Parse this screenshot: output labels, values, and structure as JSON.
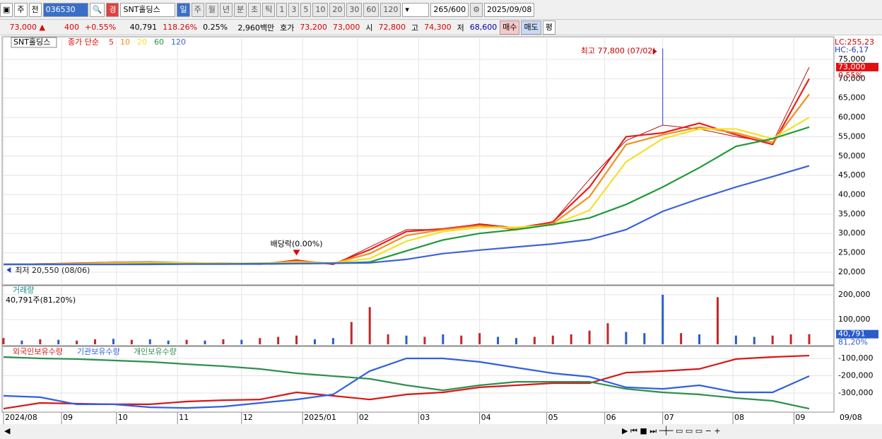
{
  "toolbar": {
    "period": "주",
    "prev": "전",
    "code": "036530",
    "name": "SNT홀딩스",
    "flag": "경",
    "units": [
      "일",
      "주",
      "월",
      "년",
      "분",
      "초",
      "틱"
    ],
    "minutes": [
      "1",
      "3",
      "5",
      "10",
      "20",
      "30",
      "60",
      "120"
    ],
    "count": "265",
    "count_max": "/600",
    "date": "2025/09/08"
  },
  "info": {
    "price": "73,000 ▲",
    "change": "400",
    "change_pct": "+0.55%",
    "volume": "40,791",
    "volume_ratio": "118.26%",
    "turnover": "0.25%",
    "amount": "2,960백만",
    "quote_label": "호가",
    "ask": "73,200",
    "bid": "73,000",
    "open_label": "시",
    "open": "72,800",
    "high_label": "고",
    "high": "74,300",
    "low_label": "저",
    "low": "68,600",
    "buy": "매수",
    "sell": "매도",
    "avg": "평"
  },
  "x_axis": {
    "xlim": [
      0,
      264
    ],
    "xticks": [
      {
        "value": 0,
        "label": "2024/08"
      },
      {
        "value": 19,
        "label": "09"
      },
      {
        "value": 37,
        "label": "10"
      },
      {
        "value": 57,
        "label": "11"
      },
      {
        "value": 78,
        "label": "12"
      },
      {
        "value": 98,
        "label": "2025/01"
      },
      {
        "value": 116,
        "label": "02"
      },
      {
        "value": 136,
        "label": "03"
      },
      {
        "value": 156,
        "label": "04"
      },
      {
        "value": 178,
        "label": "05"
      },
      {
        "value": 197,
        "label": "06"
      },
      {
        "value": 216,
        "label": "07"
      },
      {
        "value": 239,
        "label": "08"
      },
      {
        "value": 259,
        "label": "09"
      }
    ],
    "end_label": "09/08",
    "grid": true
  },
  "price_panel": {
    "stock_label": "SNT홀딩스",
    "legend_prefix": "종가 단순",
    "x": [
      0,
      12,
      24,
      36,
      48,
      60,
      72,
      84,
      96,
      108,
      120,
      132,
      144,
      156,
      168,
      180,
      192,
      204,
      216,
      228,
      240,
      252,
      264
    ],
    "close": {
      "color": "#b01818",
      "values": [
        22000,
        22200,
        22300,
        22600,
        22600,
        22400,
        22400,
        22000,
        23200,
        21900,
        26500,
        31000,
        31000,
        32500,
        31500,
        33000,
        44000,
        54000,
        58000,
        57000,
        55000,
        53500,
        73000
      ]
    },
    "series": [
      {
        "name": "5",
        "color": "#e8201c",
        "values": [
          22000,
          22100,
          22300,
          22500,
          22600,
          22400,
          22300,
          22100,
          23000,
          22100,
          25800,
          30500,
          31200,
          32300,
          31000,
          33000,
          42000,
          55000,
          56000,
          58500,
          55500,
          53000,
          70000
        ]
      },
      {
        "name": "10",
        "color": "#f0901e",
        "values": [
          22000,
          22100,
          22200,
          22400,
          22500,
          22400,
          22300,
          22200,
          22800,
          22300,
          24800,
          29500,
          31000,
          32000,
          31200,
          32500,
          39500,
          53000,
          55500,
          57500,
          56000,
          53500,
          66000
        ]
      },
      {
        "name": "20",
        "color": "#f2e22a",
        "values": [
          22000,
          22000,
          22100,
          22300,
          22400,
          22400,
          22300,
          22300,
          22500,
          22400,
          23500,
          28000,
          30500,
          31500,
          31600,
          32200,
          36000,
          48500,
          54500,
          57000,
          57000,
          54500,
          60000
        ]
      },
      {
        "name": "60",
        "color": "#1e9a38",
        "values": [
          22000,
          22000,
          22000,
          22000,
          22100,
          22100,
          22100,
          22200,
          22200,
          22300,
          22600,
          25500,
          28300,
          30000,
          31000,
          32300,
          34000,
          37500,
          42000,
          47000,
          52500,
          54500,
          57500
        ]
      },
      {
        "name": "120",
        "color": "#3c64d8",
        "values": [
          22000,
          22000,
          22000,
          22000,
          22000,
          22100,
          22100,
          22100,
          22200,
          22300,
          22400,
          23300,
          24800,
          25700,
          26500,
          27300,
          28400,
          31000,
          35700,
          39000,
          42000,
          44700,
          47500
        ]
      }
    ],
    "ylim": [
      16700,
      80850
    ],
    "yticks": [
      {
        "value": 20000,
        "label": "20,000"
      },
      {
        "value": 25000,
        "label": "25,000"
      },
      {
        "value": 30000,
        "label": "30,000"
      },
      {
        "value": 35000,
        "label": "35,000"
      },
      {
        "value": 40000,
        "label": "40,000"
      },
      {
        "value": 45000,
        "label": "45,000"
      },
      {
        "value": 50000,
        "label": "50,000"
      },
      {
        "value": 55000,
        "label": "55,000"
      },
      {
        "value": 60000,
        "label": "60,000"
      },
      {
        "value": 65000,
        "label": "65,000"
      },
      {
        "value": 70000,
        "label": "70,000"
      },
      {
        "value": 75000,
        "label": "75,000"
      }
    ],
    "grid": true,
    "high": {
      "label": "최고 77,800 (07/02)",
      "x": 216,
      "value": 77800
    },
    "low": {
      "label": "최저 20,550 (08/06)",
      "x": 1,
      "value": 20550
    },
    "dividend": {
      "label": "배당락(0.00%)",
      "x": 96
    },
    "lc": "LC:255,23",
    "hc": "HC:-6,17",
    "last_label": "73,000",
    "last_value": 73000,
    "change_label": "0.55%"
  },
  "volume_panel": {
    "title": "거래량",
    "info": "40,791주(81,20%)",
    "x": [
      0,
      6,
      12,
      18,
      24,
      30,
      36,
      42,
      48,
      54,
      60,
      66,
      72,
      78,
      84,
      90,
      96,
      102,
      108,
      114,
      120,
      126,
      132,
      138,
      144,
      150,
      156,
      162,
      168,
      174,
      180,
      186,
      192,
      198,
      204,
      210,
      216,
      222,
      228,
      234,
      240,
      246,
      252,
      258,
      264
    ],
    "values": [
      25000,
      15000,
      20000,
      18000,
      15000,
      20000,
      22000,
      18000,
      20000,
      15000,
      18000,
      15000,
      20000,
      18000,
      25000,
      30000,
      35000,
      20000,
      25000,
      90000,
      150000,
      40000,
      35000,
      30000,
      40000,
      35000,
      45000,
      30000,
      25000,
      30000,
      35000,
      40000,
      55000,
      85000,
      50000,
      45000,
      200000,
      45000,
      40000,
      190000,
      35000,
      30000,
      35000,
      40000,
      40791
    ],
    "colors": [
      "#c0282a",
      "#2a5cc8",
      "#c0282a",
      "#2a5cc8",
      "#c0282a",
      "#c0282a",
      "#2a5cc8",
      "#c0282a",
      "#2a5cc8",
      "#2a5cc8",
      "#c0282a",
      "#2a5cc8",
      "#c0282a",
      "#2a5cc8",
      "#c0282a",
      "#c0282a",
      "#c0282a",
      "#2a5cc8",
      "#2a5cc8",
      "#c0282a",
      "#c0282a",
      "#c0282a",
      "#2a5cc8",
      "#c0282a",
      "#2a5cc8",
      "#c0282a",
      "#c0282a",
      "#2a5cc8",
      "#2a5cc8",
      "#c0282a",
      "#c0282a",
      "#c0282a",
      "#c0282a",
      "#c0282a",
      "#2a5cc8",
      "#2a5cc8",
      "#2a5cc8",
      "#c0282a",
      "#2a5cc8",
      "#c0282a",
      "#2a5cc8",
      "#2a5cc8",
      "#c0282a",
      "#c0282a",
      "#c0282a"
    ],
    "ylim": [
      0,
      234000
    ],
    "yticks": [
      {
        "value": 100000,
        "label": "100,000"
      },
      {
        "value": 200000,
        "label": "200,000"
      }
    ],
    "last_label": "40,791",
    "last_value": 40791,
    "ratio_label": "81,20%"
  },
  "holdings_panel": {
    "x": [
      0,
      12,
      24,
      36,
      48,
      60,
      72,
      84,
      96,
      108,
      120,
      132,
      144,
      156,
      168,
      180,
      192,
      204,
      216,
      228,
      240,
      252,
      264
    ],
    "series": [
      {
        "name": "외국인보유수량",
        "color": "#d81818",
        "values": [
          -390000,
          -357000,
          -361000,
          -365000,
          -365000,
          -349000,
          -341000,
          -337000,
          -296000,
          -316000,
          -337000,
          -308000,
          -296000,
          -267000,
          -255000,
          -243000,
          -243000,
          -182000,
          -173000,
          -161000,
          -104000,
          -92000,
          -84000
        ]
      },
      {
        "name": "기관보유수량",
        "color": "#3060e0",
        "values": [
          -316000,
          -324000,
          -365000,
          -365000,
          -382000,
          -386000,
          -378000,
          -357000,
          -337000,
          -308000,
          -173000,
          -100000,
          -100000,
          -120000,
          -153000,
          -186000,
          -206000,
          -267000,
          -276000,
          -255000,
          -296000,
          -296000,
          -202000
        ]
      },
      {
        "name": "개인보유수량",
        "color": "#2e9050",
        "values": [
          -92000,
          -100000,
          -104000,
          -112000,
          -120000,
          -133000,
          -145000,
          -161000,
          -186000,
          -202000,
          -218000,
          -255000,
          -284000,
          -255000,
          -235000,
          -235000,
          -235000,
          -276000,
          -296000,
          -308000,
          -329000,
          -345000,
          -390000
        ]
      }
    ],
    "ylim": [
      -406000,
      -39000
    ],
    "yticks": [
      {
        "value": -100000,
        "label": "-100,000"
      },
      {
        "value": -200000,
        "label": "-200,000"
      },
      {
        "value": -300000,
        "label": "-300,000"
      }
    ]
  }
}
